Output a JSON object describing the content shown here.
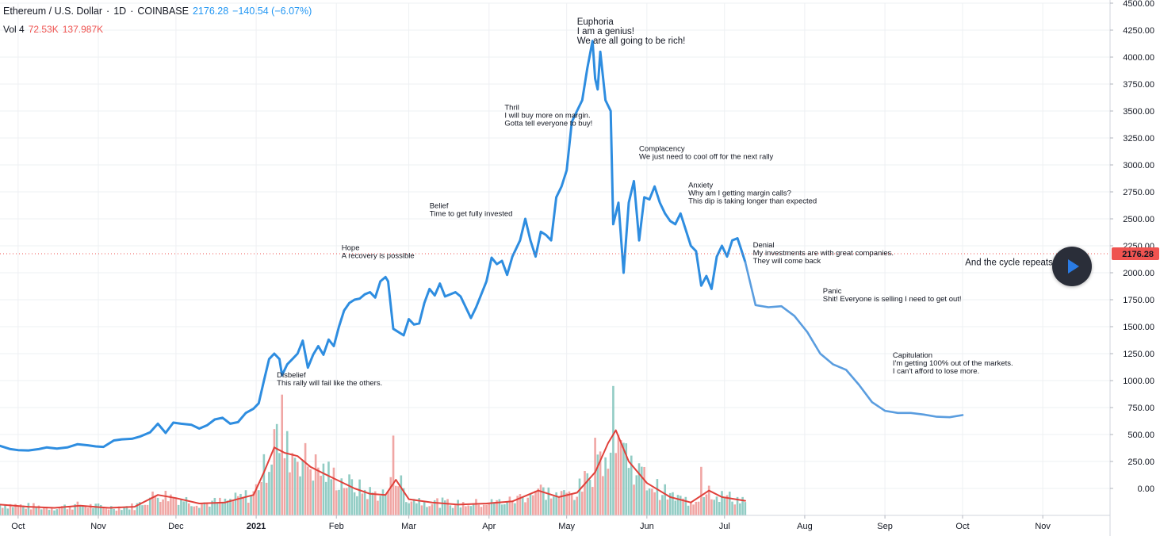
{
  "header": {
    "symbol": "Ethereum / U.S. Dollar",
    "sep1": "·",
    "interval": "1D",
    "sep2": "·",
    "exchange": "COINBASE",
    "last": "2176.28",
    "change": "−140.54 (−6.07%)",
    "vol_label": "Vol 4",
    "vol_value1": "72.53K",
    "vol_value2": "137.987K"
  },
  "price_tag": "2176.28",
  "colors": {
    "price_line": "#2e8de0",
    "projection_line": "#5a9ddf",
    "volume_ma": "#e0403a",
    "volume_up": "#92ccc4",
    "volume_down": "#f0a6a4",
    "price_tag_bg": "#ef5350",
    "axis_text": "#131722",
    "grid": "#eef0f3"
  },
  "chart_data": {
    "type": "line",
    "title": "Ethereum / U.S. Dollar · 1D · COINBASE",
    "y_axis": {
      "min": -250,
      "max": 4500,
      "ticks": [
        "4500.00",
        "4250.00",
        "4000.00",
        "3750.00",
        "3500.00",
        "3250.00",
        "3000.00",
        "2750.00",
        "2500.00",
        "2250.00",
        "2000.00",
        "1750.00",
        "1500.00",
        "1250.00",
        "1000.00",
        "750.00",
        "500.00",
        "250.00",
        "0.00"
      ],
      "side": "right"
    },
    "x_axis": {
      "start": "2020-09-24",
      "end": "2021-11-27",
      "tick_labels": [
        {
          "label": "Oct",
          "date": "2020-10-01"
        },
        {
          "label": "Nov",
          "date": "2020-11-01"
        },
        {
          "label": "Dec",
          "date": "2020-12-01"
        },
        {
          "label": "2021",
          "date": "2021-01-01",
          "bold": true
        },
        {
          "label": "Feb",
          "date": "2021-02-01"
        },
        {
          "label": "Mar",
          "date": "2021-03-01"
        },
        {
          "label": "Apr",
          "date": "2021-04-01"
        },
        {
          "label": "May",
          "date": "2021-05-01"
        },
        {
          "label": "Jun",
          "date": "2021-06-01"
        },
        {
          "label": "Jul",
          "date": "2021-07-01"
        },
        {
          "label": "Aug",
          "date": "2021-08-01"
        },
        {
          "label": "Sep",
          "date": "2021-09-01"
        },
        {
          "label": "Oct",
          "date": "2021-10-01"
        },
        {
          "label": "Nov",
          "date": "2021-11-01"
        }
      ]
    },
    "grid": true,
    "series": [
      {
        "name": "Price",
        "points": [
          [
            "2020-09-24",
            395
          ],
          [
            "2020-09-28",
            365
          ],
          [
            "2020-10-01",
            355
          ],
          [
            "2020-10-05",
            352
          ],
          [
            "2020-10-09",
            365
          ],
          [
            "2020-10-12",
            380
          ],
          [
            "2020-10-16",
            370
          ],
          [
            "2020-10-20",
            380
          ],
          [
            "2020-10-24",
            410
          ],
          [
            "2020-10-28",
            400
          ],
          [
            "2020-10-31",
            390
          ],
          [
            "2020-11-03",
            385
          ],
          [
            "2020-11-07",
            445
          ],
          [
            "2020-11-10",
            455
          ],
          [
            "2020-11-14",
            460
          ],
          [
            "2020-11-17",
            480
          ],
          [
            "2020-11-21",
            520
          ],
          [
            "2020-11-24",
            600
          ],
          [
            "2020-11-27",
            515
          ],
          [
            "2020-11-30",
            610
          ],
          [
            "2020-12-03",
            600
          ],
          [
            "2020-12-07",
            590
          ],
          [
            "2020-12-10",
            555
          ],
          [
            "2020-12-13",
            585
          ],
          [
            "2020-12-16",
            640
          ],
          [
            "2020-12-19",
            655
          ],
          [
            "2020-12-22",
            600
          ],
          [
            "2020-12-25",
            615
          ],
          [
            "2020-12-28",
            700
          ],
          [
            "2020-12-31",
            740
          ],
          [
            "2021-01-02",
            790
          ],
          [
            "2021-01-04",
            1000
          ],
          [
            "2021-01-06",
            1200
          ],
          [
            "2021-01-08",
            1250
          ],
          [
            "2021-01-10",
            1200
          ],
          [
            "2021-01-11",
            1050
          ],
          [
            "2021-01-13",
            1150
          ],
          [
            "2021-01-15",
            1200
          ],
          [
            "2021-01-17",
            1250
          ],
          [
            "2021-01-19",
            1370
          ],
          [
            "2021-01-21",
            1120
          ],
          [
            "2021-01-23",
            1240
          ],
          [
            "2021-01-25",
            1320
          ],
          [
            "2021-01-27",
            1240
          ],
          [
            "2021-01-29",
            1380
          ],
          [
            "2021-01-31",
            1320
          ],
          [
            "2021-02-02",
            1500
          ],
          [
            "2021-02-04",
            1650
          ],
          [
            "2021-02-06",
            1720
          ],
          [
            "2021-02-08",
            1750
          ],
          [
            "2021-02-10",
            1760
          ],
          [
            "2021-02-12",
            1800
          ],
          [
            "2021-02-14",
            1820
          ],
          [
            "2021-02-16",
            1770
          ],
          [
            "2021-02-18",
            1920
          ],
          [
            "2021-02-20",
            1960
          ],
          [
            "2021-02-21",
            1920
          ],
          [
            "2021-02-23",
            1480
          ],
          [
            "2021-02-25",
            1450
          ],
          [
            "2021-02-27",
            1420
          ],
          [
            "2021-03-01",
            1570
          ],
          [
            "2021-03-03",
            1520
          ],
          [
            "2021-03-05",
            1530
          ],
          [
            "2021-03-07",
            1720
          ],
          [
            "2021-03-09",
            1850
          ],
          [
            "2021-03-11",
            1790
          ],
          [
            "2021-03-13",
            1900
          ],
          [
            "2021-03-15",
            1780
          ],
          [
            "2021-03-17",
            1800
          ],
          [
            "2021-03-19",
            1820
          ],
          [
            "2021-03-21",
            1780
          ],
          [
            "2021-03-23",
            1680
          ],
          [
            "2021-03-25",
            1580
          ],
          [
            "2021-03-27",
            1680
          ],
          [
            "2021-03-29",
            1800
          ],
          [
            "2021-03-31",
            1920
          ],
          [
            "2021-04-02",
            2140
          ],
          [
            "2021-04-04",
            2080
          ],
          [
            "2021-04-06",
            2110
          ],
          [
            "2021-04-08",
            1980
          ],
          [
            "2021-04-10",
            2150
          ],
          [
            "2021-04-13",
            2300
          ],
          [
            "2021-04-15",
            2500
          ],
          [
            "2021-04-17",
            2300
          ],
          [
            "2021-04-19",
            2150
          ],
          [
            "2021-04-21",
            2380
          ],
          [
            "2021-04-23",
            2350
          ],
          [
            "2021-04-25",
            2300
          ],
          [
            "2021-04-27",
            2700
          ],
          [
            "2021-04-29",
            2800
          ],
          [
            "2021-05-01",
            2950
          ],
          [
            "2021-05-03",
            3400
          ],
          [
            "2021-05-05",
            3500
          ],
          [
            "2021-05-07",
            3600
          ],
          [
            "2021-05-09",
            3900
          ],
          [
            "2021-05-11",
            4150
          ],
          [
            "2021-05-12",
            3800
          ],
          [
            "2021-05-13",
            3700
          ],
          [
            "2021-05-14",
            4050
          ],
          [
            "2021-05-16",
            3600
          ],
          [
            "2021-05-18",
            3500
          ],
          [
            "2021-05-19",
            2450
          ],
          [
            "2021-05-21",
            2650
          ],
          [
            "2021-05-23",
            2000
          ],
          [
            "2021-05-25",
            2650
          ],
          [
            "2021-05-27",
            2850
          ],
          [
            "2021-05-29",
            2300
          ],
          [
            "2021-05-31",
            2700
          ],
          [
            "2021-06-02",
            2680
          ],
          [
            "2021-06-04",
            2800
          ],
          [
            "2021-06-06",
            2650
          ],
          [
            "2021-06-08",
            2550
          ],
          [
            "2021-06-10",
            2480
          ],
          [
            "2021-06-12",
            2450
          ],
          [
            "2021-06-14",
            2550
          ],
          [
            "2021-06-16",
            2400
          ],
          [
            "2021-06-18",
            2250
          ],
          [
            "2021-06-20",
            2200
          ],
          [
            "2021-06-22",
            1880
          ],
          [
            "2021-06-24",
            1970
          ],
          [
            "2021-06-26",
            1850
          ],
          [
            "2021-06-28",
            2150
          ],
          [
            "2021-06-30",
            2250
          ],
          [
            "2021-07-02",
            2150
          ],
          [
            "2021-07-04",
            2300
          ],
          [
            "2021-07-06",
            2320
          ],
          [
            "2021-07-07",
            2250
          ],
          [
            "2021-07-09",
            2100
          ]
        ]
      },
      {
        "name": "Projection",
        "points": [
          [
            "2021-07-09",
            2100
          ],
          [
            "2021-07-13",
            1700
          ],
          [
            "2021-07-18",
            1680
          ],
          [
            "2021-07-23",
            1690
          ],
          [
            "2021-07-28",
            1600
          ],
          [
            "2021-08-02",
            1450
          ],
          [
            "2021-08-07",
            1250
          ],
          [
            "2021-08-12",
            1150
          ],
          [
            "2021-08-17",
            1100
          ],
          [
            "2021-08-22",
            960
          ],
          [
            "2021-08-27",
            800
          ],
          [
            "2021-09-01",
            720
          ],
          [
            "2021-09-06",
            700
          ],
          [
            "2021-09-11",
            700
          ],
          [
            "2021-09-16",
            685
          ],
          [
            "2021-09-21",
            665
          ],
          [
            "2021-09-26",
            660
          ],
          [
            "2021-10-01",
            680
          ]
        ]
      },
      {
        "name": "Volume MA",
        "points": [
          [
            "2020-09-24",
            -150
          ],
          [
            "2020-10-05",
            -170
          ],
          [
            "2020-10-15",
            -180
          ],
          [
            "2020-10-25",
            -160
          ],
          [
            "2020-11-05",
            -180
          ],
          [
            "2020-11-15",
            -170
          ],
          [
            "2020-11-24",
            -60
          ],
          [
            "2020-12-01",
            -90
          ],
          [
            "2020-12-10",
            -140
          ],
          [
            "2020-12-20",
            -130
          ],
          [
            "2020-12-31",
            -60
          ],
          [
            "2021-01-04",
            150
          ],
          [
            "2021-01-08",
            380
          ],
          [
            "2021-01-12",
            330
          ],
          [
            "2021-01-17",
            300
          ],
          [
            "2021-01-22",
            200
          ],
          [
            "2021-01-27",
            140
          ],
          [
            "2021-02-02",
            70
          ],
          [
            "2021-02-08",
            0
          ],
          [
            "2021-02-14",
            -50
          ],
          [
            "2021-02-20",
            -60
          ],
          [
            "2021-02-24",
            80
          ],
          [
            "2021-03-01",
            -100
          ],
          [
            "2021-03-10",
            -130
          ],
          [
            "2021-03-20",
            -150
          ],
          [
            "2021-03-31",
            -140
          ],
          [
            "2021-04-10",
            -120
          ],
          [
            "2021-04-20",
            -20
          ],
          [
            "2021-04-28",
            -80
          ],
          [
            "2021-05-05",
            -40
          ],
          [
            "2021-05-12",
            150
          ],
          [
            "2021-05-17",
            420
          ],
          [
            "2021-05-20",
            540
          ],
          [
            "2021-05-25",
            250
          ],
          [
            "2021-06-01",
            50
          ],
          [
            "2021-06-10",
            -80
          ],
          [
            "2021-06-18",
            -130
          ],
          [
            "2021-06-25",
            -20
          ],
          [
            "2021-06-30",
            -80
          ],
          [
            "2021-07-09",
            -115
          ]
        ]
      }
    ],
    "volume": {
      "start": "2020-09-24",
      "end": "2021-07-09",
      "spikes": [
        [
          "2021-01-11",
          870
        ],
        [
          "2021-01-08",
          550
        ],
        [
          "2021-02-23",
          490
        ],
        [
          "2021-05-19",
          950
        ],
        [
          "2021-05-12",
          470
        ],
        [
          "2021-06-22",
          200
        ]
      ]
    },
    "annotations": [
      {
        "date": "2021-01-09",
        "price": 1030,
        "lines": [
          "Disbelief",
          "This rally will fail like the others."
        ]
      },
      {
        "date": "2021-02-03",
        "price": 2210,
        "lines": [
          "Hope",
          "A recovery is possible"
        ]
      },
      {
        "date": "2021-03-09",
        "price": 2600,
        "lines": [
          "Belief",
          "Time to get fully invested"
        ]
      },
      {
        "date": "2021-04-07",
        "price": 3510,
        "lines": [
          "Thril",
          "I will buy more on margin.",
          "Gotta tell everyone to buy!"
        ]
      },
      {
        "date": "2021-05-05",
        "price": 4300,
        "lines": [
          "Euphoria",
          "I am a genius!",
          "We are all going to be rich!"
        ],
        "large": true
      },
      {
        "date": "2021-05-29",
        "price": 3130,
        "lines": [
          "Complacency",
          "We just need to cool off for the next rally"
        ]
      },
      {
        "date": "2021-06-17",
        "price": 2790,
        "lines": [
          "Anxiety",
          "Why am I getting margin calls?",
          "This dip is taking longer than expected"
        ]
      },
      {
        "date": "2021-07-12",
        "price": 2235,
        "lines": [
          "Denial",
          "My investments are with great companies.",
          "They will come back"
        ]
      },
      {
        "date": "2021-08-08",
        "price": 1810,
        "lines": [
          "Panic",
          "Shit! Everyone is selling I need to get out!"
        ]
      },
      {
        "date": "2021-09-04",
        "price": 1215,
        "lines": [
          "Capitulation",
          "I'm getting 100% out of the markets.",
          "I can't afford to lose more."
        ]
      },
      {
        "date": "2021-10-02",
        "price": 2070,
        "lines": [
          "And the cycle repeats..."
        ],
        "large": true
      }
    ]
  }
}
